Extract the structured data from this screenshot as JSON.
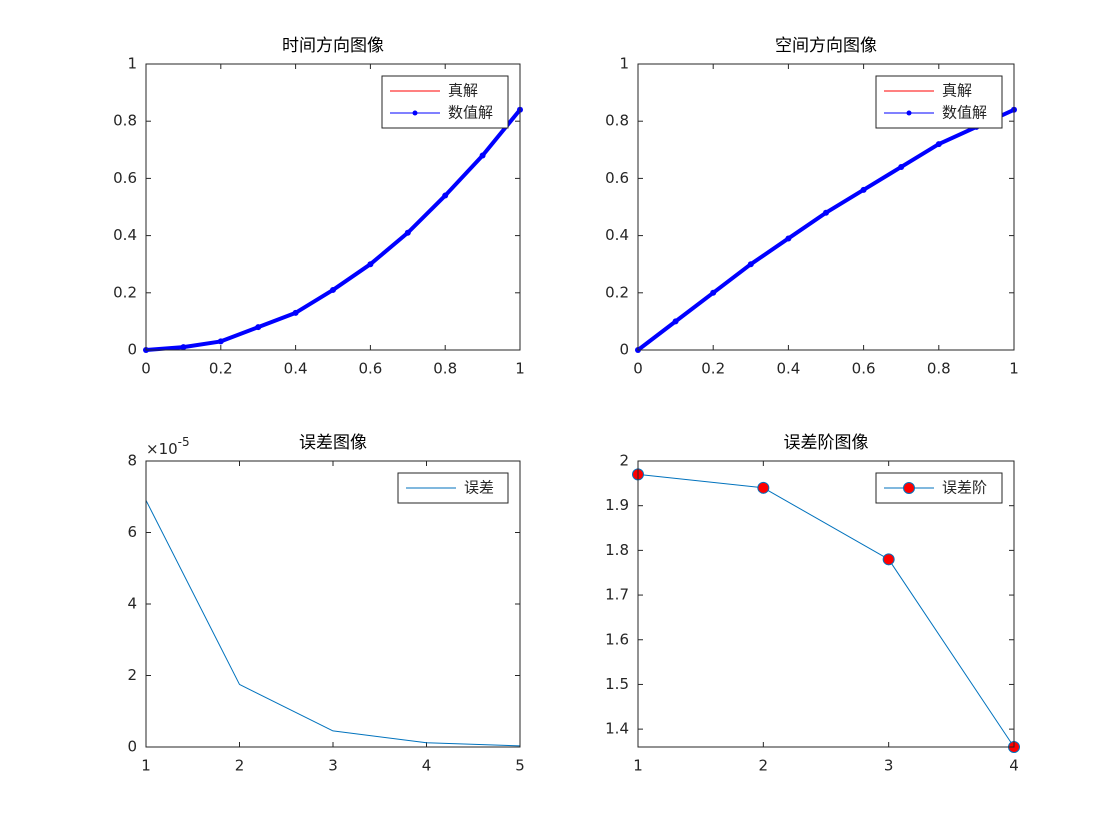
{
  "chart_data": [
    {
      "type": "line",
      "title": "时间方向图像",
      "x": [
        0,
        0.1,
        0.2,
        0.3,
        0.4,
        0.5,
        0.6,
        0.7,
        0.8,
        0.9,
        1
      ],
      "series": [
        {
          "name": "真解",
          "color": "#ff0000",
          "line_width": 1,
          "marker": "none",
          "values": [
            0,
            0.01,
            0.03,
            0.08,
            0.13,
            0.21,
            0.3,
            0.41,
            0.54,
            0.68,
            0.84
          ]
        },
        {
          "name": "数值解",
          "color": "#0000ff",
          "line_width": 4,
          "marker": "dot",
          "values": [
            0,
            0.01,
            0.03,
            0.08,
            0.13,
            0.21,
            0.3,
            0.41,
            0.54,
            0.68,
            0.84
          ]
        }
      ],
      "xlim": [
        0,
        1
      ],
      "xticks": [
        0,
        0.2,
        0.4,
        0.6,
        0.8,
        1
      ],
      "ylim": [
        0,
        1
      ],
      "yticks": [
        0,
        0.2,
        0.4,
        0.6,
        0.8,
        1
      ],
      "legend": "northeast",
      "grid": false
    },
    {
      "type": "line",
      "title": "空间方向图像",
      "x": [
        0,
        0.1,
        0.2,
        0.3,
        0.4,
        0.5,
        0.6,
        0.7,
        0.8,
        0.9,
        1
      ],
      "series": [
        {
          "name": "真解",
          "color": "#ff0000",
          "line_width": 1,
          "marker": "none",
          "values": [
            0,
            0.1,
            0.2,
            0.3,
            0.39,
            0.48,
            0.56,
            0.64,
            0.72,
            0.78,
            0.84
          ]
        },
        {
          "name": "数值解",
          "color": "#0000ff",
          "line_width": 4,
          "marker": "dot",
          "values": [
            0,
            0.1,
            0.2,
            0.3,
            0.39,
            0.48,
            0.56,
            0.64,
            0.72,
            0.78,
            0.84
          ]
        }
      ],
      "xlim": [
        0,
        1
      ],
      "xticks": [
        0,
        0.2,
        0.4,
        0.6,
        0.8,
        1
      ],
      "ylim": [
        0,
        1
      ],
      "yticks": [
        0,
        0.2,
        0.4,
        0.6,
        0.8,
        1
      ],
      "legend": "northeast",
      "grid": false
    },
    {
      "type": "line",
      "title": "误差图像",
      "x": [
        1,
        2,
        3,
        4,
        5
      ],
      "series": [
        {
          "name": "误差",
          "color": "#0072bd",
          "line_width": 1,
          "marker": "none",
          "values": [
            6.9,
            1.75,
            0.45,
            0.12,
            0.03
          ]
        }
      ],
      "xlim": [
        1,
        5
      ],
      "xticks": [
        1,
        2,
        3,
        4,
        5
      ],
      "ylim": [
        0,
        8
      ],
      "yticks": [
        0,
        2,
        4,
        6,
        8
      ],
      "y_multiplier": {
        "base": "×10",
        "exponent": "-5"
      },
      "legend": "northeast",
      "grid": false
    },
    {
      "type": "line",
      "title": "误差阶图像",
      "x": [
        1,
        2,
        3,
        4
      ],
      "series": [
        {
          "name": "误差阶",
          "color": "#0072bd",
          "line_width": 1,
          "marker": "circle",
          "marker_color": "#ff0000",
          "values": [
            1.97,
            1.94,
            1.78,
            1.36
          ]
        }
      ],
      "xlim": [
        1,
        4
      ],
      "xticks": [
        1,
        2,
        3,
        4
      ],
      "ylim": [
        1.36,
        2
      ],
      "yticks": [
        1.4,
        1.5,
        1.6,
        1.7,
        1.8,
        1.9,
        2
      ],
      "legend": "northeast",
      "grid": false
    }
  ]
}
